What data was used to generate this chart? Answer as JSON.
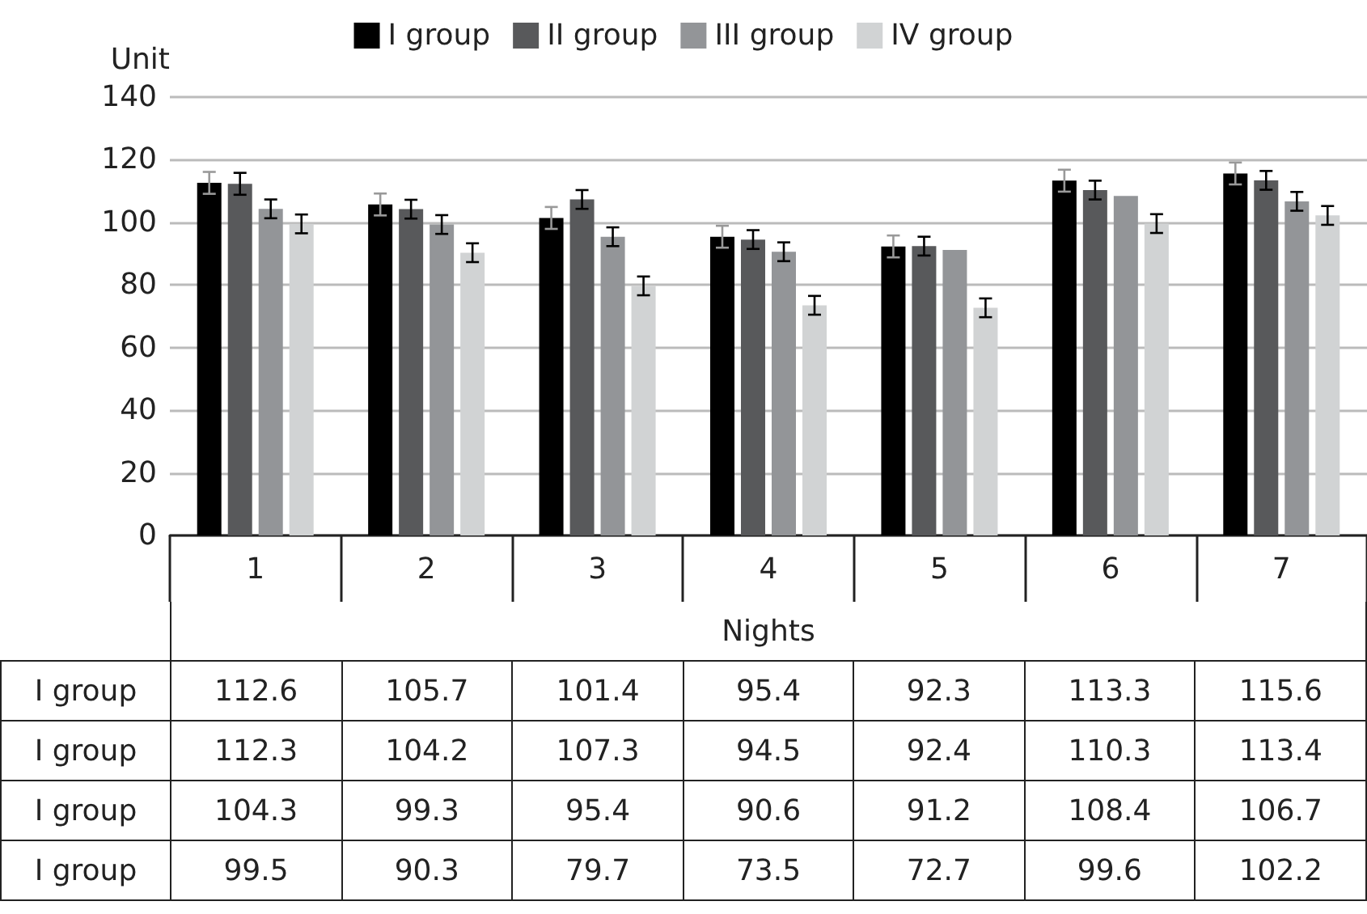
{
  "chart_data": {
    "type": "bar",
    "ylabel": "Unit",
    "xlabel": "Nights",
    "categories": [
      "1",
      "2",
      "3",
      "4",
      "5",
      "6",
      "7"
    ],
    "series": [
      {
        "name": "I group",
        "color": "#000000",
        "values": [
          112.6,
          105.7,
          101.4,
          95.4,
          92.3,
          113.3,
          115.6
        ],
        "errors": [
          3.5,
          3.5,
          3.5,
          3.5,
          3.5,
          3.5,
          3.5
        ]
      },
      {
        "name": "II group",
        "color": "#58595b",
        "values": [
          112.3,
          104.2,
          107.3,
          94.5,
          92.4,
          110.3,
          113.4
        ],
        "errors": [
          3.5,
          3,
          3,
          3,
          3,
          3,
          3
        ]
      },
      {
        "name": "III group",
        "color": "#939598",
        "values": [
          104.3,
          99.3,
          95.4,
          90.6,
          91.2,
          108.4,
          106.7
        ],
        "errors": [
          3,
          3,
          3,
          3,
          null,
          null,
          3
        ]
      },
      {
        "name": "IV group",
        "color": "#d1d3d4",
        "values": [
          99.5,
          90.3,
          79.7,
          73.5,
          72.7,
          99.6,
          102.2
        ],
        "errors": [
          3,
          3,
          3,
          3,
          3,
          3,
          3
        ]
      }
    ],
    "annotations": [
      "I group",
      "I group",
      "I group",
      "I group"
    ],
    "ylim": [
      0,
      140
    ],
    "yticks": [
      0,
      20,
      40,
      60,
      80,
      100,
      120,
      140
    ],
    "grid": "y",
    "legend": "top",
    "data_labels": true
  }
}
